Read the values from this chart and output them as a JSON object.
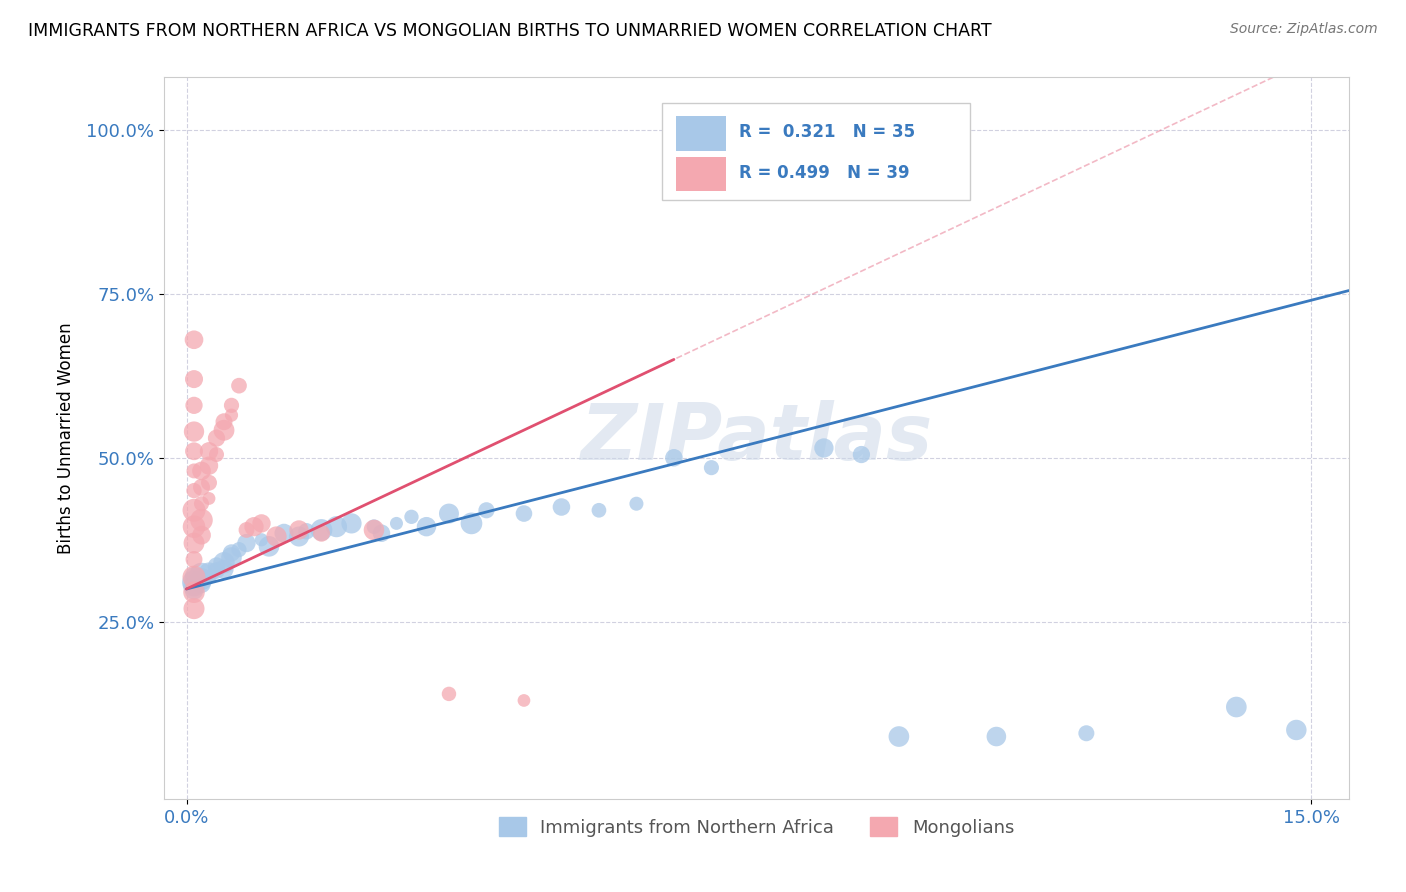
{
  "title": "IMMIGRANTS FROM NORTHERN AFRICA VS MONGOLIAN BIRTHS TO UNMARRIED WOMEN CORRELATION CHART",
  "source": "Source: ZipAtlas.com",
  "ylabel": "Births to Unmarried Women",
  "blue_color": "#a8c8e8",
  "pink_color": "#f4a8b0",
  "trend_blue_color": "#3a7abf",
  "trend_pink_color": "#e05070",
  "watermark": "ZIPatlas",
  "blue_scatter": [
    [
      0.001,
      0.32
    ],
    [
      0.001,
      0.31
    ],
    [
      0.001,
      0.305
    ],
    [
      0.001,
      0.298
    ],
    [
      0.002,
      0.315
    ],
    [
      0.002,
      0.308
    ],
    [
      0.002,
      0.322
    ],
    [
      0.003,
      0.325
    ],
    [
      0.003,
      0.318
    ],
    [
      0.004,
      0.335
    ],
    [
      0.004,
      0.328
    ],
    [
      0.005,
      0.34
    ],
    [
      0.005,
      0.33
    ],
    [
      0.006,
      0.348
    ],
    [
      0.006,
      0.355
    ],
    [
      0.007,
      0.36
    ],
    [
      0.008,
      0.37
    ],
    [
      0.01,
      0.375
    ],
    [
      0.011,
      0.365
    ],
    [
      0.013,
      0.385
    ],
    [
      0.015,
      0.38
    ],
    [
      0.016,
      0.388
    ],
    [
      0.018,
      0.39
    ],
    [
      0.02,
      0.395
    ],
    [
      0.022,
      0.4
    ],
    [
      0.025,
      0.395
    ],
    [
      0.026,
      0.385
    ],
    [
      0.028,
      0.4
    ],
    [
      0.03,
      0.41
    ],
    [
      0.032,
      0.395
    ],
    [
      0.035,
      0.415
    ],
    [
      0.038,
      0.4
    ],
    [
      0.04,
      0.42
    ],
    [
      0.045,
      0.415
    ],
    [
      0.05,
      0.425
    ],
    [
      0.055,
      0.42
    ],
    [
      0.06,
      0.43
    ],
    [
      0.065,
      0.5
    ],
    [
      0.07,
      0.485
    ],
    [
      0.085,
      0.515
    ],
    [
      0.09,
      0.505
    ],
    [
      0.095,
      0.075
    ],
    [
      0.108,
      0.075
    ],
    [
      0.12,
      0.08
    ],
    [
      0.14,
      0.12
    ],
    [
      0.148,
      0.085
    ]
  ],
  "pink_scatter": [
    [
      0.001,
      0.68
    ],
    [
      0.001,
      0.62
    ],
    [
      0.001,
      0.58
    ],
    [
      0.001,
      0.54
    ],
    [
      0.001,
      0.51
    ],
    [
      0.001,
      0.48
    ],
    [
      0.001,
      0.45
    ],
    [
      0.001,
      0.42
    ],
    [
      0.001,
      0.395
    ],
    [
      0.001,
      0.37
    ],
    [
      0.001,
      0.345
    ],
    [
      0.001,
      0.318
    ],
    [
      0.001,
      0.295
    ],
    [
      0.001,
      0.27
    ],
    [
      0.002,
      0.48
    ],
    [
      0.002,
      0.455
    ],
    [
      0.002,
      0.43
    ],
    [
      0.002,
      0.405
    ],
    [
      0.002,
      0.382
    ],
    [
      0.003,
      0.51
    ],
    [
      0.003,
      0.488
    ],
    [
      0.003,
      0.462
    ],
    [
      0.003,
      0.438
    ],
    [
      0.004,
      0.53
    ],
    [
      0.004,
      0.505
    ],
    [
      0.005,
      0.555
    ],
    [
      0.005,
      0.542
    ],
    [
      0.006,
      0.58
    ],
    [
      0.006,
      0.565
    ],
    [
      0.007,
      0.61
    ],
    [
      0.008,
      0.39
    ],
    [
      0.009,
      0.395
    ],
    [
      0.01,
      0.4
    ],
    [
      0.012,
      0.38
    ],
    [
      0.015,
      0.39
    ],
    [
      0.018,
      0.385
    ],
    [
      0.025,
      0.39
    ],
    [
      0.035,
      0.14
    ],
    [
      0.045,
      0.13
    ]
  ],
  "figsize": [
    14.06,
    8.92
  ],
  "dpi": 100,
  "xlim": [
    0.0,
    0.155
  ],
  "ylim": [
    0.0,
    1.08
  ],
  "yticks": [
    0.25,
    0.5,
    0.75,
    1.0
  ],
  "ytick_labels": [
    "25.0%",
    "50.0%",
    "75.0%",
    "100.0%"
  ],
  "xticks": [
    0.0,
    0.15
  ],
  "xtick_labels": [
    "0.0%",
    "15.0%"
  ]
}
